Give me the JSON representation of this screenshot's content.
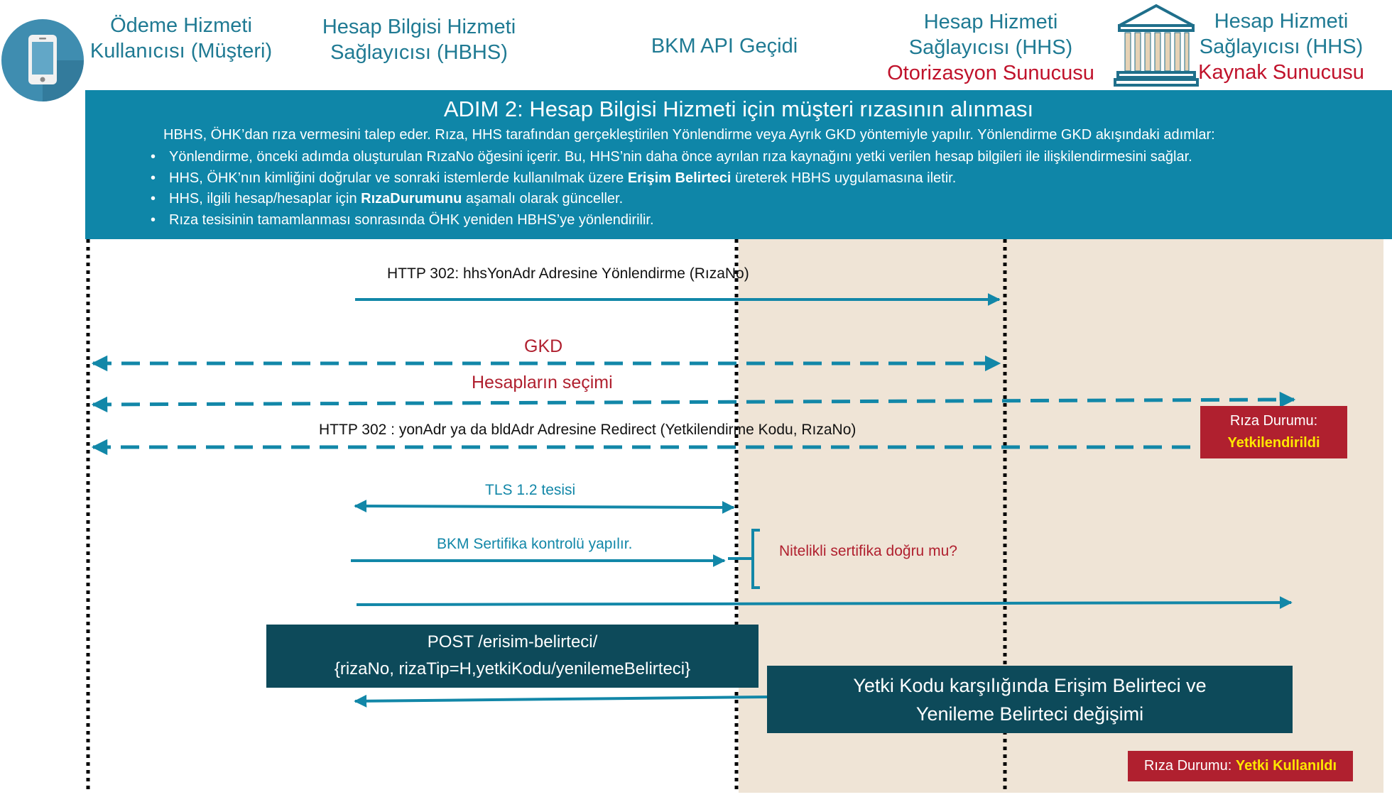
{
  "colors": {
    "teal": "#1287a8",
    "banner": "#0f86a8",
    "red": "#b0202f",
    "dark": "#0d4a5a",
    "beige": "#efe4d6",
    "yellow": "#ffe600"
  },
  "participants": {
    "customer": {
      "line1": "Ödeme Hizmeti",
      "line2": "Kullanıcısı (Müşteri)",
      "icon": "smartphone-icon"
    },
    "hbhs": {
      "line1": "Hesap Bilgisi Hizmeti",
      "line2": "Sağlayıcısı (HBHS)"
    },
    "bkm": {
      "line1": "BKM API Geçidi"
    },
    "hhs_auth": {
      "line1": "Hesap Hizmeti",
      "line2": "Sağlayıcısı (HHS)",
      "line3": "Otorizasyon Sunucusu"
    },
    "hhs_resource": {
      "line1": "Hesap Hizmeti",
      "line2": "Sağlayıcısı (HHS)",
      "line3": "Kaynak Sunucusu",
      "icon": "bank-icon"
    }
  },
  "banner": {
    "title": "ADIM 2: Hesap Bilgisi Hizmeti için müşteri rızasının alınması",
    "intro": "HBHS, ÖHK’dan rıza vermesini talep eder. Rıza, HHS tarafından gerçekleştirilen Yönlendirme veya Ayrık GKD yöntemiyle yapılır. Yönlendirme GKD akışındaki adımlar:",
    "bullets": {
      "b1": "Yönlendirme, önceki adımda oluşturulan RızaNo öğesini içerir. Bu, HHS’nin daha önce ayrılan rıza kaynağını yetki verilen hesap bilgileri ile ilişkilendirmesini sağlar.",
      "b2_pre": "HHS, ÖHK’nın kimliğini doğrular ve sonraki istemlerde kullanılmak üzere ",
      "b2_bold": "Erişim Belirteci",
      "b2_post": " üreterek HBHS uygulamasına iletir.",
      "b3_pre": "HHS, ilgili hesap/hesaplar için ",
      "b3_bold": "RızaDurumunu",
      "b3_post": " aşamalı olarak günceller.",
      "b4": "Rıza tesisinin tamamlanması sonrasında ÖHK yeniden HBHS’ye yönlendirilir."
    }
  },
  "messages": {
    "m1": "HTTP 302: hhsYonAdr Adresine Yönlendirme  (RızaNo)",
    "m2": "GKD",
    "m3": "Hesapların seçimi",
    "m4": "HTTP 302 : yonAdr ya da bldAdr Adresine Redirect (Yetkilendirme Kodu, RızaNo)",
    "m5": "TLS 1.2 tesisi",
    "m6": "BKM Sertifika kontrolü yapılır.",
    "m6_note": "Nitelikli sertifika doğru mu?"
  },
  "post_box": {
    "line1": "POST /erisim-belirteci/",
    "line2": "{rizaNo, rizaTip=H,yetkiKodu/yenilemeBelirteci}"
  },
  "exchange_box": {
    "line1": "Yetki Kodu karşılığında Erişim Belirteci ve",
    "line2": "Yenileme Belirteci değişimi"
  },
  "status1": {
    "label": "Rıza Durumu:",
    "value": "Yetkilendirildi"
  },
  "status2": {
    "label": "Rıza Durumu: ",
    "value": "Yetki Kullanıldı"
  }
}
